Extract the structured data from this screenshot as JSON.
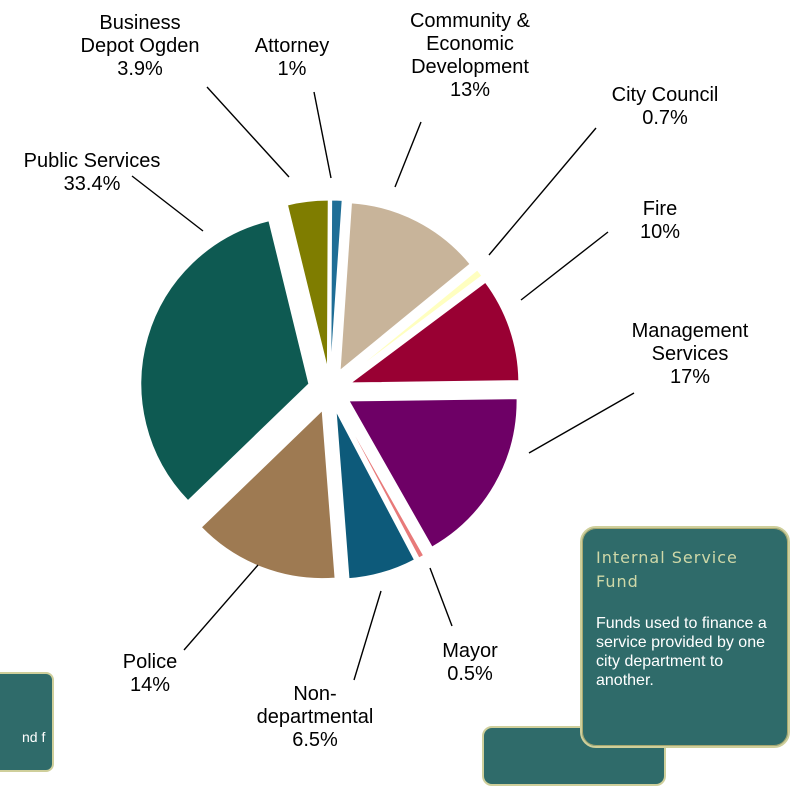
{
  "chart_data": {
    "type": "pie",
    "exploded": true,
    "slices": [
      {
        "name": "Attorney",
        "value": 1,
        "label": "1%",
        "color": "#1f6e96"
      },
      {
        "name": "Community & Economic Development",
        "value": 13,
        "label": "13%",
        "color": "#c8b49a"
      },
      {
        "name": "City Council",
        "value": 0.7,
        "label": "0.7%",
        "color": "#ffffc0"
      },
      {
        "name": "Fire",
        "value": 10,
        "label": "10%",
        "color": "#990033"
      },
      {
        "name": "Management Services",
        "value": 17,
        "label": "17%",
        "color": "#6e0066"
      },
      {
        "name": "Mayor",
        "value": 0.5,
        "label": "0.5%",
        "color": "#e87a7a"
      },
      {
        "name": "Non-departmental",
        "value": 6.5,
        "label": "6.5%",
        "color": "#0d5a7a"
      },
      {
        "name": "Police",
        "value": 14,
        "label": "14%",
        "color": "#9e7a52"
      },
      {
        "name": "Public Services",
        "value": 33.4,
        "label": "33.4%",
        "color": "#0e5a52"
      },
      {
        "name": "Business Depot Ogden",
        "value": 3.9,
        "label": "3.9%",
        "color": "#7f7d00"
      }
    ]
  },
  "labels": {
    "attorney": [
      "Attorney",
      "1%"
    ],
    "ced": [
      "Community &",
      "Economic",
      "Development",
      "13%"
    ],
    "council": [
      "City Council",
      "0.7%"
    ],
    "fire": [
      "Fire",
      "10%"
    ],
    "mgmt": [
      "Management",
      "Services",
      "17%"
    ],
    "mayor": [
      "Mayor",
      "0.5%"
    ],
    "nondept": [
      "Non-",
      "departmental",
      "6.5%"
    ],
    "police": [
      "Police",
      "14%"
    ],
    "public": [
      "Public Services",
      "33.4%"
    ],
    "bdo": [
      "Business",
      "Depot Ogden",
      "3.9%"
    ]
  },
  "callout": {
    "title": "Internal Service Fund",
    "body": "Funds used to finance a service provided by one city department to another."
  },
  "partial_text": "nd f"
}
